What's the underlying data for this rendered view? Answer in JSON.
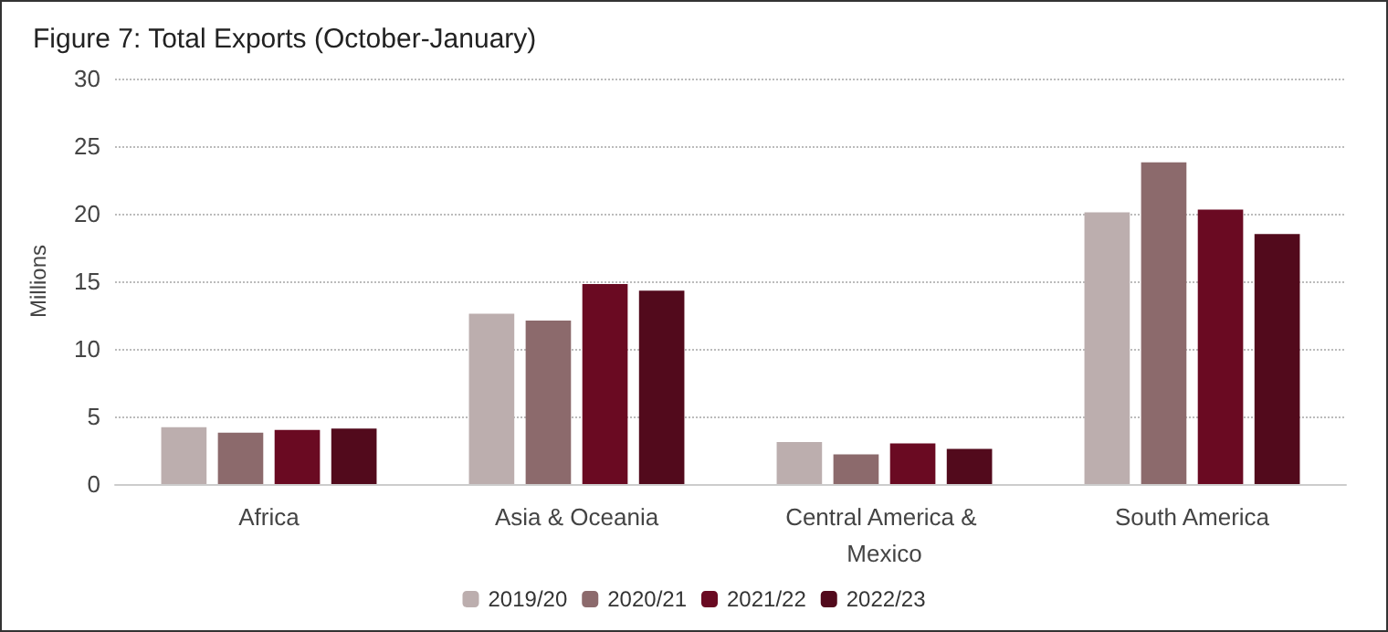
{
  "chart_data": {
    "type": "bar",
    "title": "Figure 7: Total Exports (October-January)",
    "ylabel": "Millions",
    "categories": [
      "Africa",
      "Asia & Oceania",
      "Central America & Mexico",
      "South America"
    ],
    "series": [
      {
        "name": "2019/20",
        "color": "#bcaeae",
        "values": [
          4.2,
          12.6,
          3.1,
          20.1
        ]
      },
      {
        "name": "2020/21",
        "color": "#8c6a6c",
        "values": [
          3.8,
          12.1,
          2.2,
          23.8
        ]
      },
      {
        "name": "2021/22",
        "color": "#6a0a22",
        "values": [
          4.0,
          14.8,
          3.0,
          20.3
        ]
      },
      {
        "name": "2022/23",
        "color": "#520a1c",
        "values": [
          4.1,
          14.3,
          2.6,
          18.5
        ]
      }
    ],
    "ylim": [
      0,
      30
    ],
    "yticks": [
      0,
      5,
      10,
      15,
      20,
      25,
      30
    ],
    "grid": "y",
    "legend": "bottom"
  }
}
